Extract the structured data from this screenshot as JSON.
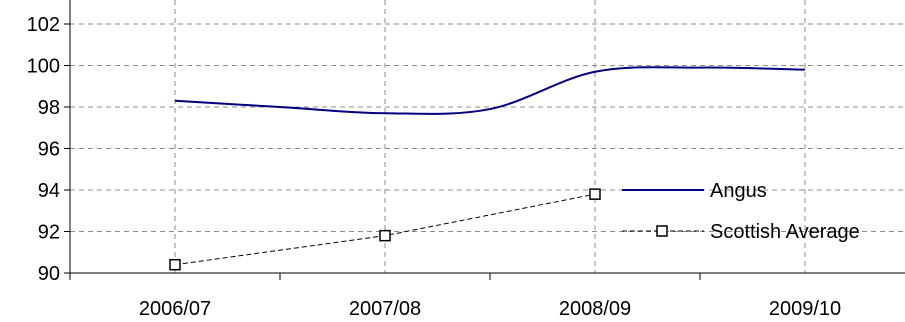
{
  "chart_data": {
    "type": "line",
    "title": "",
    "xlabel": "",
    "ylabel": "",
    "categories": [
      "2006/07",
      "2007/08",
      "2008/09",
      "2009/10"
    ],
    "ylim": [
      90,
      102
    ],
    "yticks": [
      90,
      92,
      94,
      96,
      98,
      100,
      102
    ],
    "grid": true,
    "legend_position": "right",
    "series": [
      {
        "name": "Angus",
        "color": "#000080",
        "line_style": "solid",
        "marker": "none",
        "smooth": true,
        "x": [
          0,
          0.5,
          1,
          1.5,
          2,
          2.5,
          3
        ],
        "values": [
          98.3,
          98.0,
          97.7,
          97.9,
          99.7,
          99.9,
          99.8
        ]
      },
      {
        "name": "Scottish Average",
        "color": "#000000",
        "line_style": "dashed",
        "marker": "square",
        "smooth": false,
        "x": [
          0,
          1,
          2
        ],
        "values": [
          90.4,
          91.8,
          93.8
        ]
      }
    ]
  }
}
